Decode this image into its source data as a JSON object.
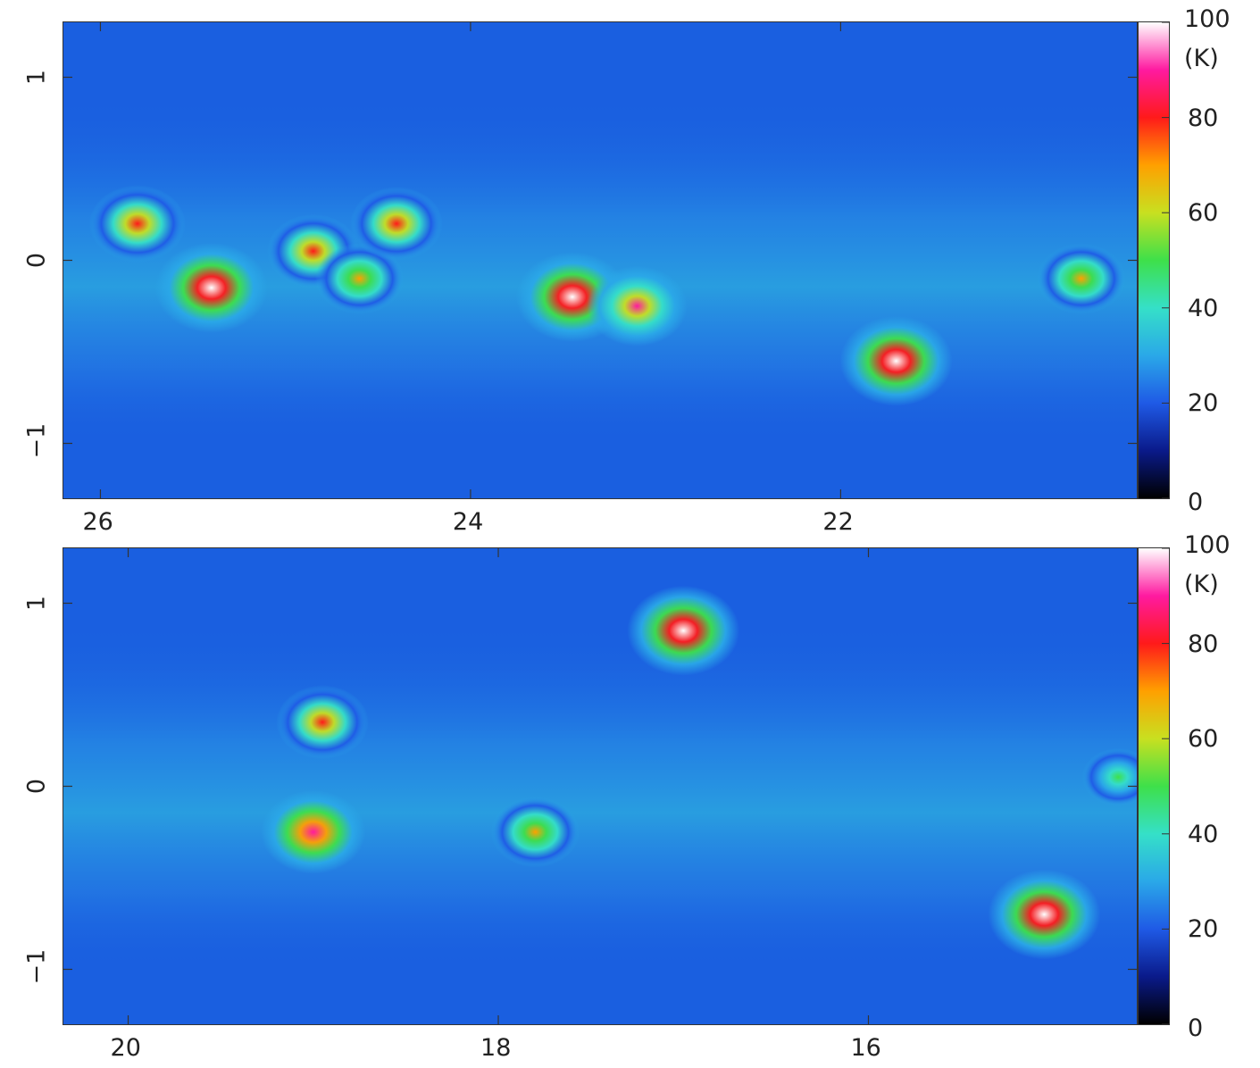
{
  "chart_data": [
    {
      "type": "heatmap",
      "panel": "top",
      "x_tick_labels": [
        "26",
        "24",
        "22"
      ],
      "x_ticks": [
        26,
        24,
        22
      ],
      "xlim": [
        26.2,
        20.4
      ],
      "y_tick_labels": [
        "1",
        "0",
        "−1"
      ],
      "y_ticks": [
        1,
        0,
        -1
      ],
      "ylim": [
        -1.3,
        1.3
      ],
      "colorbar": {
        "unit_label": "(K)",
        "tick_labels": [
          "100",
          "80",
          "60",
          "40",
          "20",
          "0"
        ],
        "range": [
          0,
          100
        ]
      },
      "bright_sources": [
        {
          "x": 25.8,
          "y": 0.2,
          "value": 80
        },
        {
          "x": 25.4,
          "y": -0.15,
          "value": 100
        },
        {
          "x": 24.85,
          "y": 0.05,
          "value": 75
        },
        {
          "x": 24.6,
          "y": -0.1,
          "value": 70
        },
        {
          "x": 24.4,
          "y": 0.2,
          "value": 75
        },
        {
          "x": 23.45,
          "y": -0.2,
          "value": 100
        },
        {
          "x": 23.1,
          "y": -0.25,
          "value": 85
        },
        {
          "x": 21.7,
          "y": -0.55,
          "value": 100
        },
        {
          "x": 20.7,
          "y": -0.1,
          "value": 70
        }
      ]
    },
    {
      "type": "heatmap",
      "panel": "bottom",
      "x_tick_labels": [
        "20",
        "18",
        "16"
      ],
      "x_ticks": [
        20,
        18,
        16
      ],
      "xlim": [
        20.35,
        14.55
      ],
      "y_tick_labels": [
        "1",
        "0",
        "−1"
      ],
      "y_ticks": [
        1,
        0,
        -1
      ],
      "ylim": [
        -1.3,
        1.3
      ],
      "colorbar": {
        "unit_label": "(K)",
        "tick_labels": [
          "100",
          "80",
          "60",
          "40",
          "20",
          "0"
        ],
        "range": [
          0,
          100
        ]
      },
      "bright_sources": [
        {
          "x": 19.0,
          "y": -0.25,
          "value": 90
        },
        {
          "x": 18.95,
          "y": 0.35,
          "value": 75
        },
        {
          "x": 17.8,
          "y": -0.25,
          "value": 70
        },
        {
          "x": 17.0,
          "y": 0.85,
          "value": 100
        },
        {
          "x": 15.05,
          "y": -0.7,
          "value": 100
        },
        {
          "x": 14.65,
          "y": 0.05,
          "value": 50
        }
      ]
    }
  ],
  "colors": {
    "background_field": "#1a5fe0",
    "colormap": [
      "#000000",
      "#0a1a8a",
      "#1f5ae6",
      "#2aa8e8",
      "#35e0c8",
      "#3ee04a",
      "#c8e020",
      "#ffa000",
      "#ff1a1a",
      "#ff1aa0",
      "#ffffff"
    ]
  }
}
